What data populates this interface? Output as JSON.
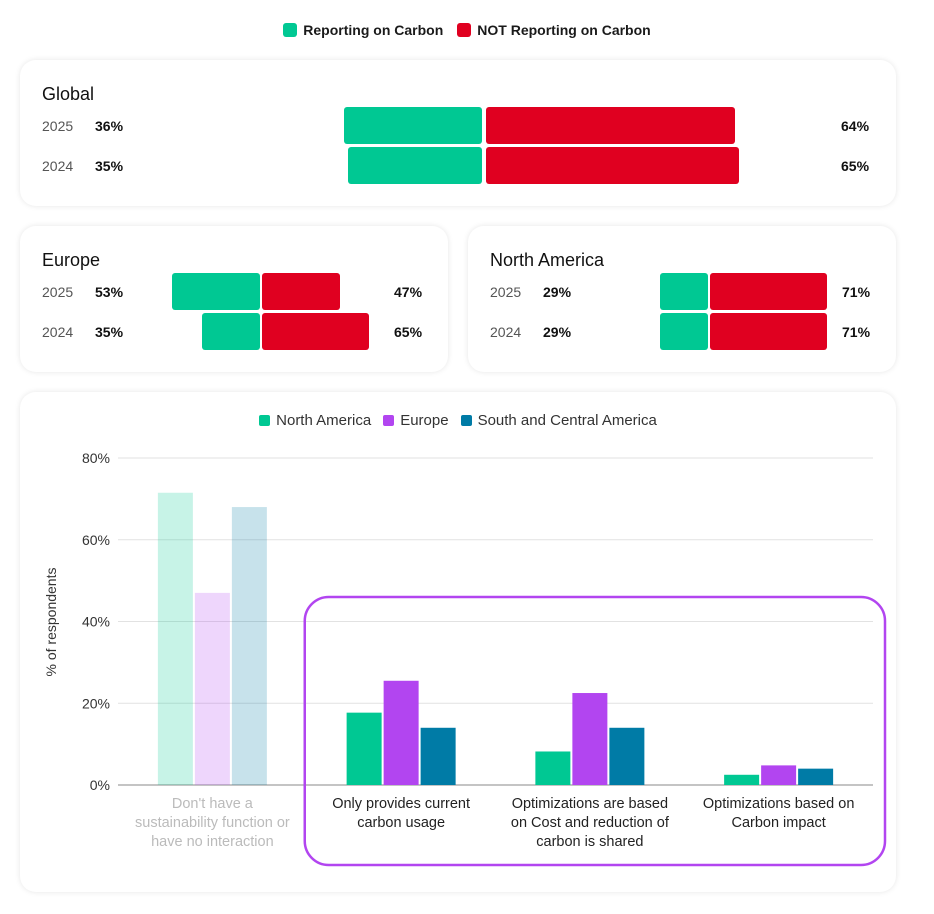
{
  "legend": {
    "reporting": "Reporting on Carbon",
    "not_reporting": "NOT Reporting on Carbon",
    "reporting_color": "#00c893",
    "not_reporting_color": "#e00020"
  },
  "global": {
    "title": "Global",
    "rows": [
      {
        "year": "2025",
        "reporting": "36%",
        "not_reporting": "64%",
        "reporting_value": 36,
        "not_reporting_value": 64
      },
      {
        "year": "2024",
        "reporting": "35%",
        "not_reporting": "65%",
        "reporting_value": 35,
        "not_reporting_value": 65
      }
    ]
  },
  "europe": {
    "title": "Europe",
    "rows": [
      {
        "year": "2025",
        "reporting": "53%",
        "not_reporting": "47%",
        "reporting_value": 53,
        "not_reporting_value": 47
      },
      {
        "year": "2024",
        "reporting": "35%",
        "not_reporting": "65%",
        "reporting_value": 35,
        "not_reporting_value": 65
      }
    ]
  },
  "north_america": {
    "title": "North America",
    "rows": [
      {
        "year": "2025",
        "reporting": "29%",
        "not_reporting": "71%",
        "reporting_value": 29,
        "not_reporting_value": 71
      },
      {
        "year": "2024",
        "reporting": "29%",
        "not_reporting": "71%",
        "reporting_value": 29,
        "not_reporting_value": 71
      }
    ]
  },
  "chart_data": {
    "type": "bar",
    "title": "",
    "xlabel": "",
    "ylabel": "% of respondents",
    "ylim": [
      0,
      80
    ],
    "yticks": [
      "0%",
      "20%",
      "40%",
      "60%",
      "80%"
    ],
    "categories": [
      [
        "Don't have a",
        "sustainability function or",
        "have no interaction"
      ],
      [
        "Only provides current",
        "carbon usage"
      ],
      [
        "Optimizations are based",
        "on Cost and reduction of",
        "carbon is shared"
      ],
      [
        "Optimizations based on",
        "Carbon impact"
      ]
    ],
    "faded_categories": [
      0
    ],
    "highlighted_categories": [
      1,
      2,
      3
    ],
    "series": [
      {
        "name": "North America",
        "color": "#00c893",
        "values": [
          71.5,
          17.7,
          8.2,
          2.5
        ]
      },
      {
        "name": "Europe",
        "color": "#b245f0",
        "values": [
          47,
          25.5,
          22.5,
          4.8
        ]
      },
      {
        "name": "South and Central America",
        "color": "#007ba6",
        "values": [
          68,
          14,
          14,
          4
        ]
      }
    ],
    "grid": true,
    "legend_position": "top"
  }
}
